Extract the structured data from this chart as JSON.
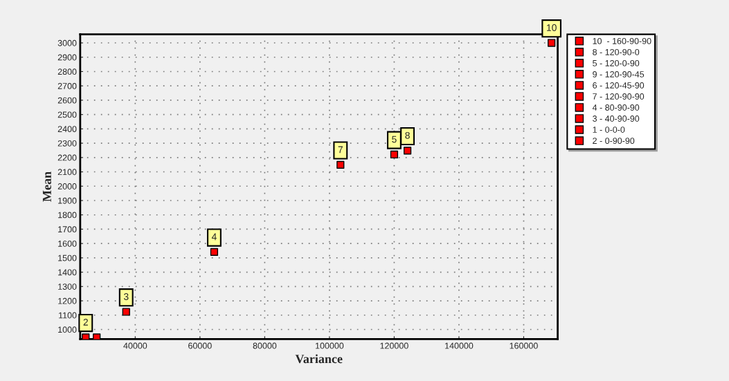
{
  "chart_data": {
    "type": "scatter",
    "xlabel": "Variance",
    "ylabel": "Mean",
    "xlim": [
      23000,
      170500
    ],
    "ylim": [
      933,
      3060
    ],
    "xticks": [
      40000,
      60000,
      80000,
      100000,
      120000,
      140000,
      160000
    ],
    "yticks": [
      1000,
      1100,
      1200,
      1300,
      1400,
      1500,
      1600,
      1700,
      1800,
      1900,
      2000,
      2100,
      2200,
      2300,
      2400,
      2500,
      2600,
      2700,
      2800,
      2900,
      3000
    ],
    "grid": true,
    "legend": "right",
    "marker": "square",
    "series": [
      {
        "name": "10  - 160-90-90",
        "color": "#ff0000",
        "x": [
          168600
        ],
        "values": [
          3000
        ]
      },
      {
        "name": "8 - 120-90-0",
        "color": "#ff0000",
        "x": [
          124100
        ],
        "values": [
          2248
        ]
      },
      {
        "name": "5 - 120-0-90",
        "color": "#ff0000",
        "x": [
          120000
        ],
        "values": [
          2221
        ]
      },
      {
        "name": "9 - 120-90-45",
        "color": "#ff0000",
        "x": [
          null
        ],
        "values": [
          null
        ]
      },
      {
        "name": "6 - 120-45-90",
        "color": "#ff0000",
        "x": [
          null
        ],
        "values": [
          null
        ]
      },
      {
        "name": "7 - 120-90-90",
        "color": "#ff0000",
        "x": [
          103400
        ],
        "values": [
          2149
        ]
      },
      {
        "name": "4 - 80-90-90",
        "color": "#ff0000",
        "x": [
          64400
        ],
        "values": [
          1541
        ]
      },
      {
        "name": "3 - 40-90-90",
        "color": "#ff0000",
        "x": [
          37200
        ],
        "values": [
          1123
        ]
      },
      {
        "name": "1 - 0-0-0",
        "color": "#ff0000",
        "x": [
          28100
        ],
        "values": [
          945
        ]
      },
      {
        "name": "2 - 0-90-90",
        "color": "#ff0000",
        "x": [
          24700
        ],
        "values": [
          945
        ]
      }
    ],
    "annotations": [
      {
        "text": "10",
        "x": 168600,
        "y": 3000
      },
      {
        "text": "8",
        "x": 124100,
        "y": 2248
      },
      {
        "text": "5",
        "x": 120000,
        "y": 2221
      },
      {
        "text": "7",
        "x": 103400,
        "y": 2149
      },
      {
        "text": "4",
        "x": 64400,
        "y": 1541
      },
      {
        "text": "3",
        "x": 37200,
        "y": 1123
      },
      {
        "text": "2",
        "x": 24700,
        "y": 945
      }
    ]
  }
}
